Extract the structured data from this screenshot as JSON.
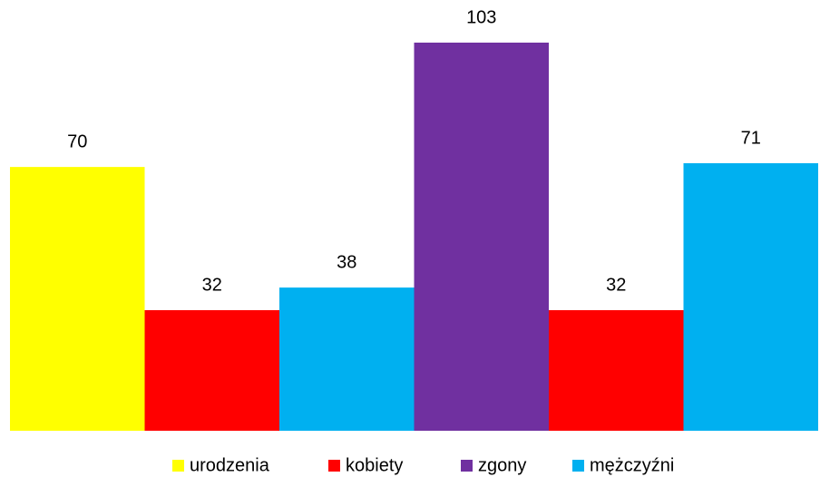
{
  "chart_data": {
    "type": "bar",
    "categories": [
      null,
      null
    ],
    "series": [
      {
        "name": "urodzenia",
        "color": "#ffff00",
        "values": [
          70,
          null
        ]
      },
      {
        "name": "kobiety",
        "color": "#ff0000",
        "values": [
          32,
          32
        ]
      },
      {
        "name": "zgony",
        "color": "#7030a0",
        "values": [
          null,
          103
        ]
      },
      {
        "name": "mężczyźni",
        "color": "#00b0f0",
        "values": [
          38,
          71
        ]
      }
    ],
    "legend": "bottom"
  }
}
